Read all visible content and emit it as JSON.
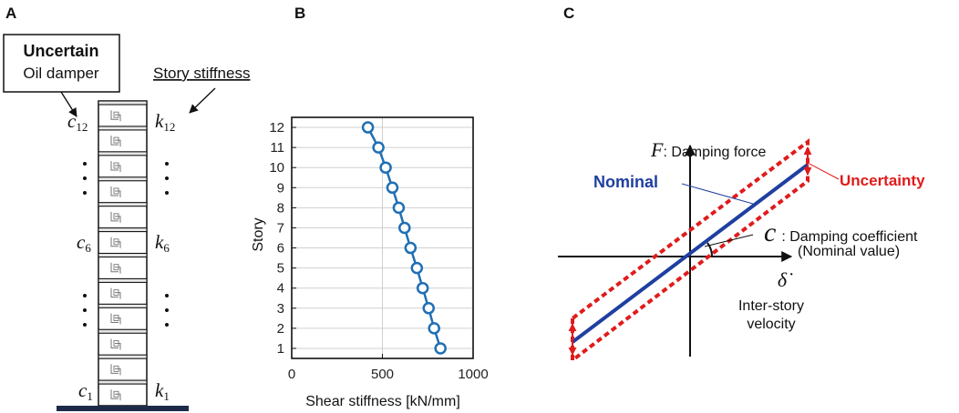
{
  "panels": {
    "a": "A",
    "b": "B",
    "c": "C"
  },
  "panel_a": {
    "box_title": "Uncertain",
    "box_subtitle": "Oil damper",
    "stiffness_label": "Story stiffness",
    "c_symbol": "c",
    "k_symbol": "k",
    "story_subscripts": {
      "top": "12",
      "mid": "6",
      "bottom": "1"
    },
    "story_count": 12
  },
  "chart_data": {
    "type": "line",
    "title": "",
    "xlabel": "Shear stiffness [kN/mm]",
    "ylabel": "Story",
    "xlim": [
      0,
      1000
    ],
    "ylim": [
      0.5,
      12.5
    ],
    "xticks": [
      0,
      500,
      1000
    ],
    "yticks": [
      1,
      2,
      3,
      4,
      5,
      6,
      7,
      8,
      9,
      10,
      11,
      12
    ],
    "marker": "circle",
    "color": "#1f6fb4",
    "points": [
      {
        "story": 1,
        "stiffness": 820
      },
      {
        "story": 2,
        "stiffness": 785
      },
      {
        "story": 3,
        "stiffness": 755
      },
      {
        "story": 4,
        "stiffness": 722
      },
      {
        "story": 5,
        "stiffness": 690
      },
      {
        "story": 6,
        "stiffness": 655
      },
      {
        "story": 7,
        "stiffness": 622
      },
      {
        "story": 8,
        "stiffness": 590
      },
      {
        "story": 9,
        "stiffness": 555
      },
      {
        "story": 10,
        "stiffness": 518
      },
      {
        "story": 11,
        "stiffness": 478
      },
      {
        "story": 12,
        "stiffness": 420
      }
    ]
  },
  "panel_c": {
    "force_symbol": "F",
    "force_label": ": Damping force",
    "nominal_label": "Nominal",
    "uncertainty_label": "Uncertainty",
    "coef_symbol": "c",
    "coef_label": ": Damping coefficient",
    "coef_sublabel": "(Nominal value)",
    "velocity_symbol": "δ̇",
    "velocity_label_1": "Inter-story",
    "velocity_label_2": "velocity",
    "colors": {
      "nominal": "#1f3fa0",
      "uncertainty": "#e01b1b"
    }
  }
}
